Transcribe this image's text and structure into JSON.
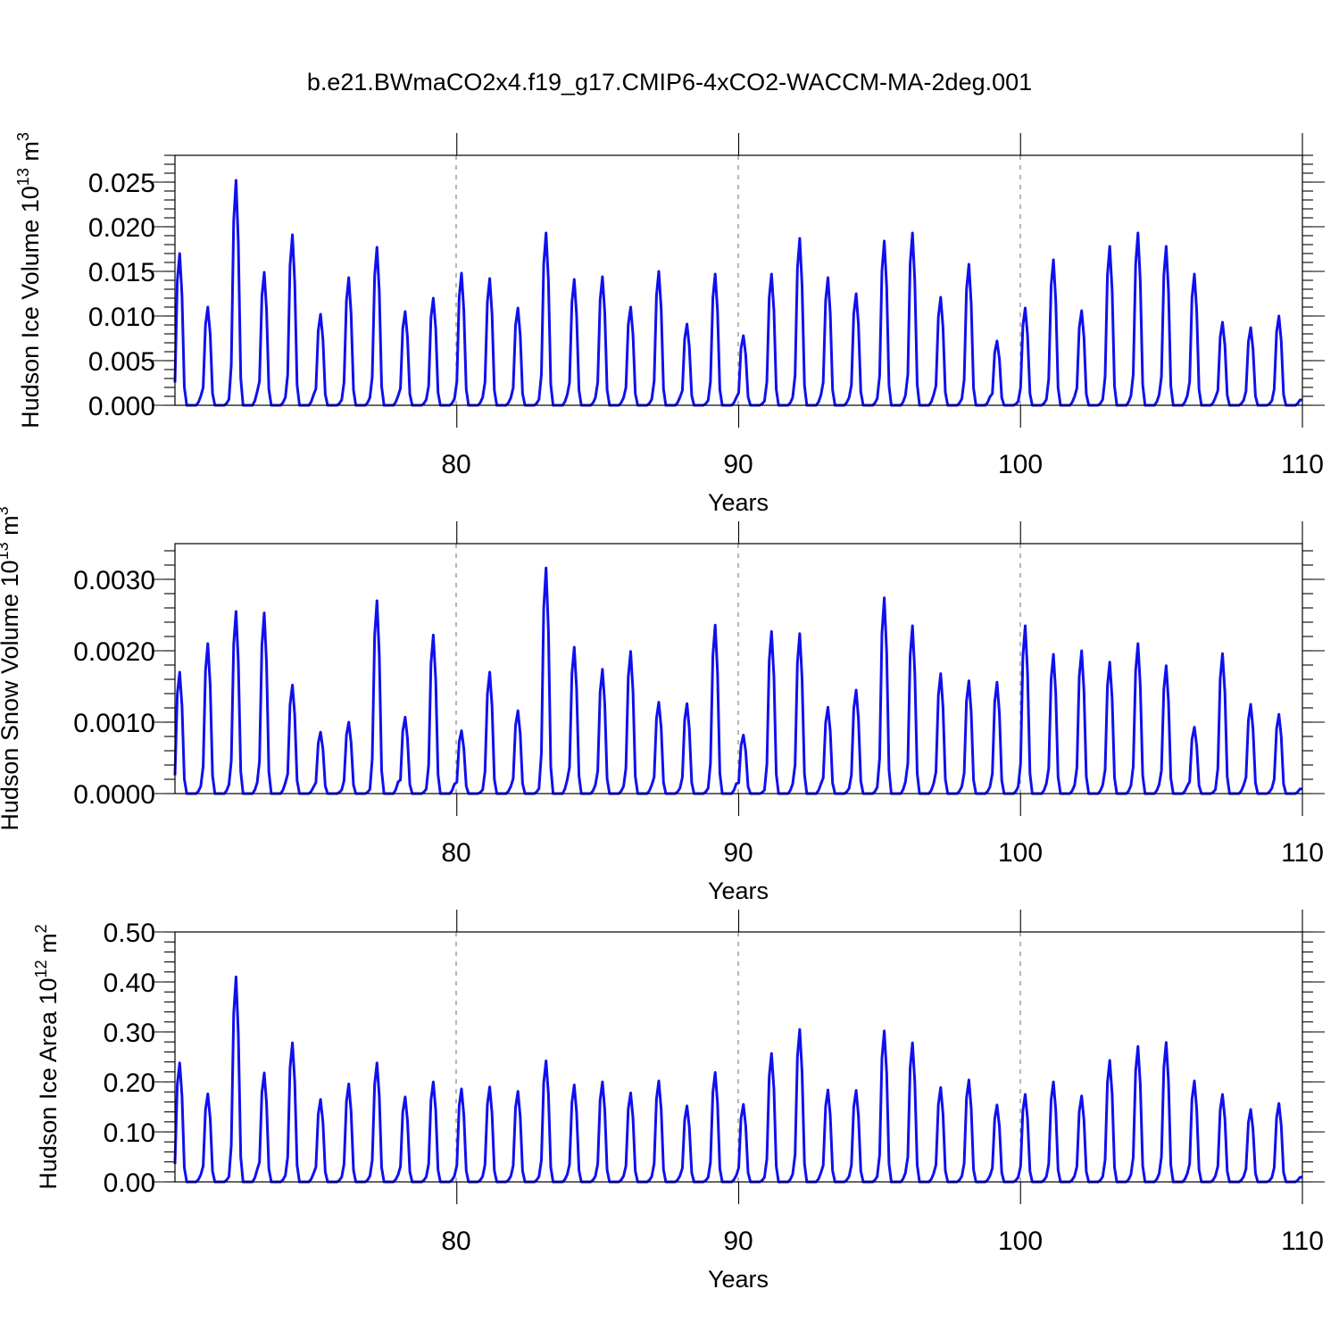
{
  "figure": {
    "title": "b.e21.BWmaCO2x4.f19_g17.CMIP6-4xCO2-WACCM-MA-2deg.001"
  },
  "chart_data": [
    {
      "type": "line",
      "title": "",
      "xlabel": "Years",
      "ylabel_main": "Hudson Ice Volume 10",
      "ylabel_exp": "13",
      "ylabel_unit": " m",
      "ylabel_unit_exp": "3",
      "xlim": [
        70,
        110
      ],
      "ylim": [
        0,
        0.028
      ],
      "x_ticks": [
        80,
        90,
        100,
        110
      ],
      "x_tick_labels": [
        "80",
        "90",
        "100",
        "110"
      ],
      "y_ticks": [
        0,
        0.005,
        0.01,
        0.015,
        0.02,
        0.025
      ],
      "y_tick_labels": [
        "0.000",
        "0.005",
        "0.010",
        "0.015",
        "0.020",
        "0.025"
      ],
      "grid_x": [
        80,
        90,
        100
      ],
      "start_year": 70,
      "series_color": "#1010ee",
      "annual_peaks": [
        0.017,
        0.011,
        0.0252,
        0.0149,
        0.0191,
        0.0102,
        0.0143,
        0.0177,
        0.0105,
        0.012,
        0.0148,
        0.0142,
        0.0109,
        0.0193,
        0.0141,
        0.0144,
        0.011,
        0.015,
        0.0091,
        0.0147,
        0.0078,
        0.0147,
        0.0187,
        0.0143,
        0.0125,
        0.0184,
        0.0193,
        0.0121,
        0.0158,
        0.0072,
        0.0109,
        0.0163,
        0.0106,
        0.0178,
        0.0193,
        0.0178,
        0.0147,
        0.0093,
        0.0087,
        0.01
      ]
    },
    {
      "type": "line",
      "title": "",
      "xlabel": "Years",
      "ylabel_main": "Hudson Snow Volume 10",
      "ylabel_exp": "13",
      "ylabel_unit": " m",
      "ylabel_unit_exp": "3",
      "xlim": [
        70,
        110
      ],
      "ylim": [
        0,
        0.0035
      ],
      "x_ticks": [
        80,
        90,
        100,
        110
      ],
      "x_tick_labels": [
        "80",
        "90",
        "100",
        "110"
      ],
      "y_ticks": [
        0,
        0.001,
        0.002,
        0.003
      ],
      "y_tick_labels": [
        "0.0000",
        "0.0010",
        "0.0020",
        "0.0030"
      ],
      "grid_x": [
        80,
        90,
        100
      ],
      "start_year": 70,
      "series_color": "#1010ee",
      "annual_peaks": [
        0.0017,
        0.0021,
        0.00255,
        0.00253,
        0.00152,
        0.00086,
        0.001,
        0.0027,
        0.00107,
        0.00222,
        0.00088,
        0.0017,
        0.00116,
        0.00316,
        0.00205,
        0.00174,
        0.00199,
        0.00128,
        0.00126,
        0.00236,
        0.00082,
        0.00227,
        0.00224,
        0.00121,
        0.00145,
        0.00274,
        0.00235,
        0.00168,
        0.00158,
        0.00156,
        0.00235,
        0.00195,
        0.002,
        0.00184,
        0.0021,
        0.00179,
        0.00093,
        0.00196,
        0.00125,
        0.00111
      ]
    },
    {
      "type": "line",
      "title": "",
      "xlabel": "Years",
      "ylabel_main": "Hudson Ice Area 10",
      "ylabel_exp": "12",
      "ylabel_unit": " m",
      "ylabel_unit_exp": "2",
      "xlim": [
        70,
        110
      ],
      "ylim": [
        0,
        0.5
      ],
      "x_ticks": [
        80,
        90,
        100,
        110
      ],
      "x_tick_labels": [
        "80",
        "90",
        "100",
        "110"
      ],
      "y_ticks": [
        0,
        0.1,
        0.2,
        0.3,
        0.4,
        0.5
      ],
      "y_tick_labels": [
        "0.00",
        "0.10",
        "0.20",
        "0.30",
        "0.40",
        "0.50"
      ],
      "grid_x": [
        80,
        90,
        100
      ],
      "start_year": 70,
      "series_color": "#1010ee",
      "annual_peaks": [
        0.238,
        0.176,
        0.41,
        0.218,
        0.278,
        0.165,
        0.196,
        0.238,
        0.17,
        0.2,
        0.186,
        0.19,
        0.181,
        0.242,
        0.194,
        0.2,
        0.178,
        0.202,
        0.152,
        0.219,
        0.155,
        0.257,
        0.305,
        0.184,
        0.183,
        0.302,
        0.278,
        0.189,
        0.204,
        0.154,
        0.175,
        0.2,
        0.172,
        0.243,
        0.271,
        0.279,
        0.202,
        0.175,
        0.145,
        0.157
      ]
    }
  ]
}
